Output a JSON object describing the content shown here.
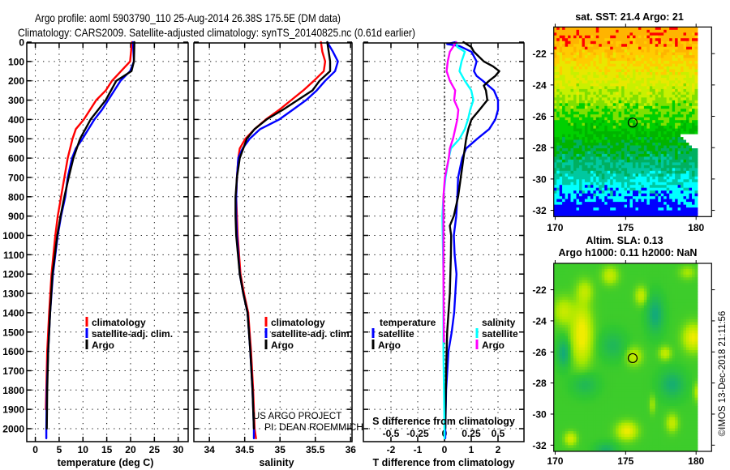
{
  "title": {
    "line1": "Argo profile: aoml 5903790_110 25-Aug-2014 26.38S 175.5E (DM data)",
    "line2": "Climatology: CARS2009. Satellite-adjusted climatology: synTS_20140825.nc (0.61d earlier)"
  },
  "depth_ticks": [
    0,
    100,
    200,
    300,
    400,
    500,
    600,
    700,
    800,
    900,
    1000,
    1100,
    1200,
    1300,
    1400,
    1500,
    1600,
    1700,
    1800,
    1900,
    2000
  ],
  "colors": {
    "climatology": "#ff0000",
    "satellite_adj": "#0000ff",
    "argo": "#000000",
    "sal_satellite": "#00ffff",
    "sal_argo": "#ff00ff"
  },
  "chart_data": [
    {
      "type": "line",
      "name": "temperature",
      "xlabel": "temperature (deg C)",
      "xlim": [
        -1.8,
        32.1
      ],
      "ylim": [
        2067,
        0
      ],
      "grid": true,
      "xticks": [
        0,
        5,
        10,
        15,
        20,
        25,
        30
      ],
      "legend_placement": "lower-center",
      "series": [
        {
          "name": "climatology",
          "color": "#ff0000",
          "depth": [
            0,
            100,
            150,
            200,
            250,
            300,
            400,
            450,
            500,
            600,
            700,
            800,
            900,
            1000,
            1200,
            1400,
            1600,
            1800,
            1900
          ],
          "values": [
            20.3,
            19.9,
            18.0,
            16.1,
            14.8,
            12.8,
            10.2,
            8.5,
            7.8,
            6.8,
            6.1,
            5.4,
            4.7,
            4.2,
            3.4,
            2.9,
            2.5,
            2.3,
            2.2
          ]
        },
        {
          "name": "satellite-adj. clim.",
          "color": "#0000ff",
          "depth": [
            0,
            100,
            150,
            200,
            300,
            350,
            400,
            500,
            550,
            600,
            700,
            800,
            900,
            1000,
            1200,
            1400,
            1600,
            1800,
            2000,
            2050
          ],
          "values": [
            20.5,
            20.7,
            19.9,
            17.9,
            15.3,
            14.0,
            12.4,
            9.9,
            8.5,
            7.7,
            6.8,
            6.3,
            5.4,
            4.7,
            3.7,
            3.1,
            2.7,
            2.4,
            2.3,
            2.3
          ]
        },
        {
          "name": "Argo",
          "color": "#000000",
          "depth": [
            0,
            100,
            150,
            200,
            300,
            400,
            500,
            600,
            700,
            800,
            900,
            1000,
            1200,
            1400,
            1600,
            1800,
            2000
          ],
          "values": [
            20.8,
            20.7,
            20.2,
            17.0,
            14.8,
            11.6,
            9.4,
            8.0,
            7.0,
            6.1,
            5.3,
            4.6,
            3.6,
            3.1,
            2.7,
            2.5,
            2.4
          ]
        }
      ]
    },
    {
      "type": "line",
      "name": "salinity",
      "xlabel": "salinity",
      "xlim": [
        33.78,
        36.02
      ],
      "ylim": [
        2067,
        0
      ],
      "grid": true,
      "xticks": [
        34,
        34.5,
        35,
        35.5,
        36
      ],
      "legend_placement": "lower-center",
      "series": [
        {
          "name": "climatology",
          "color": "#ff0000",
          "depth": [
            0,
            50,
            100,
            150,
            200,
            250,
            300,
            350,
            400,
            450,
            500,
            550,
            600,
            700,
            800,
            900,
            1000,
            1200,
            1300,
            1400,
            1600,
            1800,
            2000,
            2050
          ],
          "values": [
            35.58,
            35.6,
            35.64,
            35.62,
            35.48,
            35.33,
            35.16,
            34.99,
            34.8,
            34.64,
            34.51,
            34.43,
            34.41,
            34.39,
            34.38,
            34.39,
            34.4,
            34.44,
            34.49,
            34.55,
            34.59,
            34.62,
            34.64,
            34.66
          ]
        },
        {
          "name": "satellite-adj. clim.",
          "color": "#0000ff",
          "depth": [
            0,
            50,
            100,
            150,
            200,
            250,
            300,
            350,
            400,
            450,
            500,
            550,
            600,
            700,
            800,
            900,
            1000,
            1200,
            1300,
            1400,
            1600,
            1800,
            2000,
            2050
          ],
          "values": [
            35.67,
            35.75,
            35.82,
            35.78,
            35.64,
            35.52,
            35.37,
            35.18,
            34.99,
            34.72,
            34.57,
            34.47,
            34.41,
            34.39,
            34.38,
            34.38,
            34.39,
            34.43,
            34.48,
            34.54,
            34.58,
            34.61,
            34.63,
            34.63
          ]
        },
        {
          "name": "Argo",
          "color": "#000000",
          "depth": [
            0,
            100,
            150,
            200,
            250,
            300,
            350,
            400,
            450,
            500,
            600,
            700,
            800,
            900,
            1000,
            1200,
            1300,
            1400,
            1600,
            1800,
            2000
          ],
          "values": [
            35.67,
            35.71,
            35.71,
            35.56,
            35.46,
            35.25,
            35.04,
            34.81,
            34.64,
            34.53,
            34.43,
            34.39,
            34.37,
            34.37,
            34.38,
            34.43,
            34.48,
            34.54,
            34.58,
            34.61,
            34.63
          ]
        }
      ]
    },
    {
      "type": "line",
      "name": "difference",
      "xlabel": "T difference from climatology",
      "x2label": "S difference from climatology",
      "xlim": [
        -3.03,
        2.97
      ],
      "x2lim": [
        -0.7575,
        0.7425
      ],
      "ylim": [
        2067,
        0
      ],
      "grid": true,
      "xticks": [
        -2,
        -1,
        0,
        1,
        2
      ],
      "x2ticks": [
        -0.5,
        -0.25,
        0,
        0.25,
        0.5
      ],
      "legend": {
        "temperature_heading": "temperature",
        "salinity_heading": "salinity"
      },
      "series": [
        {
          "name": "satellite",
          "group": "temperature",
          "axis": "T",
          "color": "#0000ff",
          "depth": [
            0,
            10,
            20,
            50,
            100,
            150,
            175,
            200,
            250,
            300,
            350,
            400,
            450,
            500,
            550,
            600,
            700,
            800,
            900,
            1000,
            1100,
            1200,
            1400,
            1500,
            1600,
            1800,
            2000,
            2050
          ],
          "values": [
            0.4,
            0.1,
            0.56,
            1.01,
            1.2,
            1.1,
            1.2,
            1.43,
            1.85,
            2.0,
            2.0,
            1.9,
            1.67,
            1.22,
            0.81,
            0.66,
            0.51,
            0.48,
            0.44,
            0.35,
            0.38,
            0.45,
            0.36,
            0.27,
            0.15,
            0.06,
            0.03,
            0.03
          ]
        },
        {
          "name": "Argo",
          "group": "temperature",
          "axis": "T",
          "color": "#000000",
          "depth": [
            0,
            25,
            50,
            100,
            125,
            150,
            175,
            200,
            225,
            250,
            300,
            350,
            400,
            450,
            500,
            600,
            700,
            800,
            900,
            950,
            1000,
            1100,
            1300,
            1500,
            1700,
            2000
          ],
          "values": [
            0.71,
            1.0,
            1.1,
            1.47,
            1.81,
            2.05,
            1.9,
            1.67,
            1.47,
            1.55,
            1.6,
            1.31,
            1.01,
            0.89,
            0.81,
            0.71,
            0.61,
            0.51,
            0.35,
            0.2,
            0.25,
            0.24,
            0.2,
            0.1,
            0.06,
            0.03
          ]
        },
        {
          "name": "satellite",
          "group": "salinity",
          "axis": "S",
          "color": "#00ffff",
          "depth": [
            0,
            25,
            50,
            100,
            150,
            200,
            250,
            300,
            350,
            400,
            450,
            500,
            550,
            600,
            700,
            800,
            900,
            1200,
            1600,
            2000,
            2050
          ],
          "values": [
            0.11,
            0.12,
            0.19,
            0.16,
            0.14,
            0.19,
            0.25,
            0.27,
            0.24,
            0.22,
            0.19,
            0.14,
            0.06,
            0.04,
            0.01,
            -0.01,
            -0.02,
            -0.01,
            -0.01,
            0.0,
            0.0
          ]
        },
        {
          "name": "Argo",
          "group": "salinity",
          "axis": "S",
          "color": "#ff00ff",
          "depth": [
            0,
            25,
            50,
            100,
            150,
            200,
            250,
            300,
            350,
            400,
            450,
            500,
            550,
            600,
            700,
            800,
            900,
            1200,
            1550
          ],
          "values": [
            0.11,
            0.08,
            0.05,
            0.03,
            0.02,
            0.05,
            0.1,
            0.09,
            0.13,
            0.12,
            0.1,
            0.08,
            0.05,
            0.04,
            0.004,
            -0.01,
            -0.01,
            -0.01,
            -0.005
          ]
        }
      ]
    },
    {
      "type": "heatmap",
      "name": "sst-map",
      "title": "sat. SST: 21.4 Argo: 21",
      "xticks": [
        170,
        175,
        180
      ],
      "yticks": [
        -22,
        -24,
        -26,
        -28,
        -30,
        -32
      ],
      "xlim": [
        169.9,
        181.1
      ],
      "ylim": [
        -32.4,
        -20.3
      ],
      "marker": {
        "lon": 175.5,
        "lat": -26.4
      }
    },
    {
      "type": "heatmap",
      "name": "sla-map",
      "title": "Altim. SLA: 0.13",
      "subtitle": "Argo h1000: 0.11 h2000: NaN",
      "xticks": [
        170,
        175,
        180
      ],
      "yticks": [
        -22,
        -24,
        -26,
        -28,
        -30,
        -32
      ],
      "xlim": [
        169.9,
        181.1
      ],
      "ylim": [
        -32.4,
        -20.3
      ],
      "marker": {
        "lon": 175.5,
        "lat": -26.4
      }
    }
  ],
  "credits": {
    "project": "US ARGO PROJECT",
    "pi": "PI: DEAN ROEMMICH"
  },
  "timestamp": "©IMOS 13-Dec-2018 21:11:56"
}
